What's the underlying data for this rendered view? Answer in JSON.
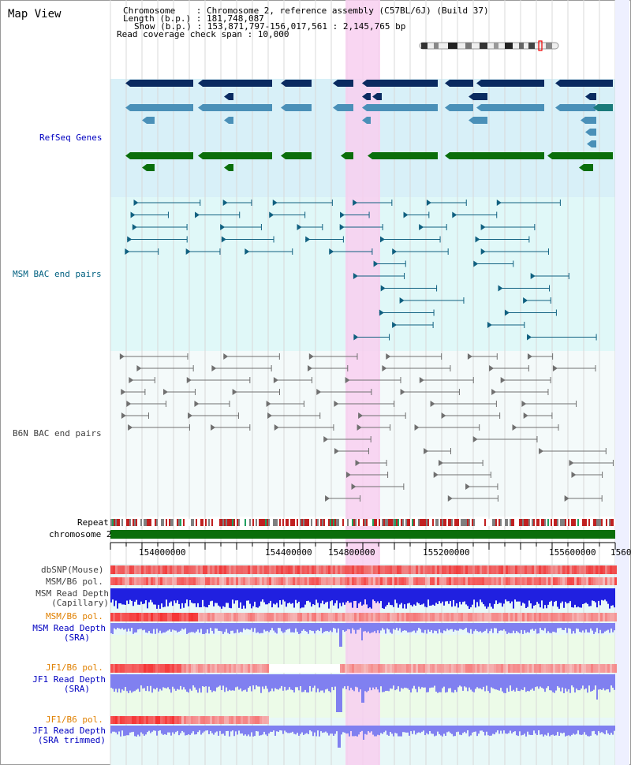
{
  "title": "Map View",
  "info": {
    "chromosome_line": "Chromosome    : Chromosome 2, reference assembly (C57BL/6J) (Build 37)",
    "length_line": "Length (b.p.) : 181,748,087",
    "show_line": "Show (b.p.) : 153,871,797-156,017,561 : 2,145,765 bp",
    "coverage_line": "Read coverage check span : 10,000"
  },
  "tracks": {
    "refseq": "RefSeq Genes",
    "msm_bac": "MSM BAC end pairs",
    "b6n_bac": "B6N BAC end pairs",
    "repeat": "Repeat",
    "chromosome": "chromosome 2",
    "dbsnp": "dbSNP(Mouse)",
    "msm_b6_pol_1": "MSM/B6 pol.",
    "msm_read_depth_cap": "MSM Read Depth",
    "msm_read_depth_cap_sub": "(Capillary)",
    "msm_b6_pol_2": "MSM/B6 pol.",
    "msm_read_depth_sra": "MSM Read Depth",
    "msm_read_depth_sra_sub": "(SRA)",
    "jf1_b6_pol_1": "JF1/B6 pol.",
    "jf1_read_depth_sra": "JF1 Read Depth",
    "jf1_read_depth_sra_sub": "(SRA)",
    "jf1_b6_pol_2": "JF1/B6 pol.",
    "jf1_read_depth_trim": "JF1 Read Depth",
    "jf1_read_depth_trim_sub": "(SRA trimmed)"
  },
  "ticks": [
    "154000000",
    "154400000",
    "154800000",
    "155200000",
    "155600000",
    "1560"
  ],
  "colors": {
    "refseq_bg": "#d8f0f8",
    "msm_bg": "#e0f8f8",
    "b6n_bg": "#f0f8f8",
    "highlight": "#f8d0f0",
    "label_blue": "#0000c0",
    "label_teal": "#006080",
    "label_orange": "#e08000",
    "label_gray": "#404040"
  }
}
